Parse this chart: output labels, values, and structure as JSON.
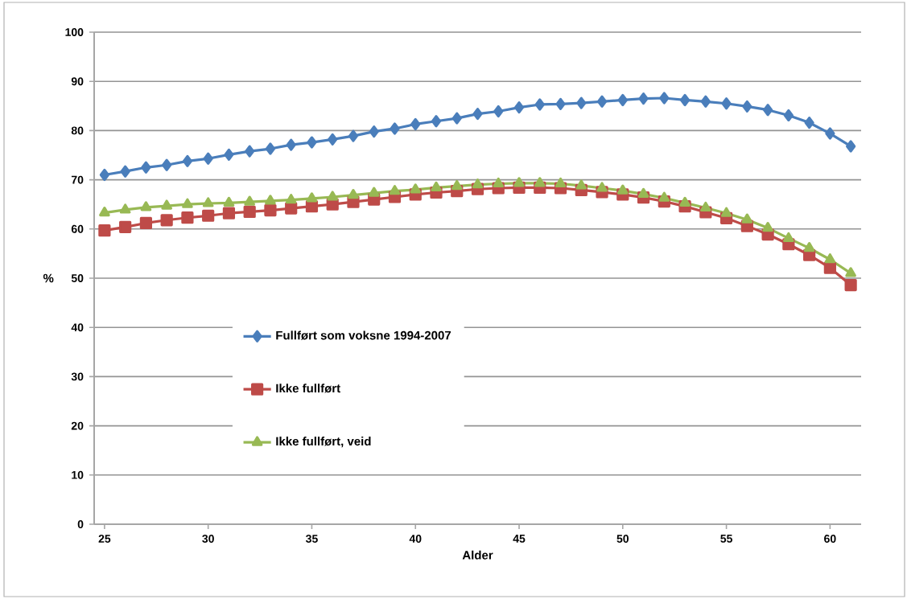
{
  "chart_data": {
    "type": "line",
    "xlabel": "Alder",
    "ylabel": "%",
    "x": [
      25,
      26,
      27,
      28,
      29,
      30,
      31,
      32,
      33,
      34,
      35,
      36,
      37,
      38,
      39,
      40,
      41,
      42,
      43,
      44,
      45,
      46,
      47,
      48,
      49,
      50,
      51,
      52,
      53,
      54,
      55,
      56,
      57,
      58,
      59,
      60,
      61
    ],
    "xlim": [
      24.5,
      61.5
    ],
    "xticks": [
      25,
      30,
      35,
      40,
      45,
      50,
      55,
      60
    ],
    "ylim": [
      0,
      100
    ],
    "yticks": [
      0,
      10,
      20,
      30,
      40,
      50,
      60,
      70,
      80,
      90,
      100
    ],
    "grid": "y",
    "legend": "left",
    "series": [
      {
        "name": "Fullført som voksne 1994-2007",
        "color": "#4a7ebb",
        "marker": "diamond",
        "values": [
          71.0,
          71.7,
          72.5,
          73.0,
          73.8,
          74.3,
          75.1,
          75.8,
          76.3,
          77.1,
          77.6,
          78.2,
          78.9,
          79.8,
          80.4,
          81.3,
          81.9,
          82.5,
          83.4,
          83.9,
          84.7,
          85.3,
          85.4,
          85.6,
          85.9,
          86.2,
          86.5,
          86.6,
          86.2,
          85.9,
          85.5,
          84.9,
          84.2,
          83.1,
          81.6,
          79.4,
          76.8
        ]
      },
      {
        "name": "Ikke fullført",
        "color": "#be4b48",
        "marker": "square",
        "values": [
          59.7,
          60.4,
          61.2,
          61.8,
          62.3,
          62.7,
          63.2,
          63.5,
          63.8,
          64.2,
          64.6,
          65.0,
          65.5,
          66.0,
          66.5,
          67.0,
          67.4,
          67.7,
          68.1,
          68.3,
          68.4,
          68.4,
          68.3,
          67.9,
          67.5,
          67.0,
          66.4,
          65.6,
          64.6,
          63.4,
          62.2,
          60.6,
          58.9,
          56.9,
          54.7,
          52.1,
          48.6
        ]
      },
      {
        "name": "Ikke fullført, veid",
        "color": "#98b954",
        "marker": "triangle",
        "values": [
          63.3,
          63.9,
          64.4,
          64.7,
          65.0,
          65.2,
          65.3,
          65.5,
          65.7,
          65.9,
          66.2,
          66.5,
          66.9,
          67.3,
          67.7,
          68.0,
          68.4,
          68.7,
          69.0,
          69.2,
          69.3,
          69.3,
          69.2,
          68.8,
          68.3,
          67.8,
          67.1,
          66.3,
          65.3,
          64.3,
          63.2,
          61.9,
          60.2,
          58.1,
          56.1,
          53.8,
          51.0
        ]
      }
    ]
  }
}
